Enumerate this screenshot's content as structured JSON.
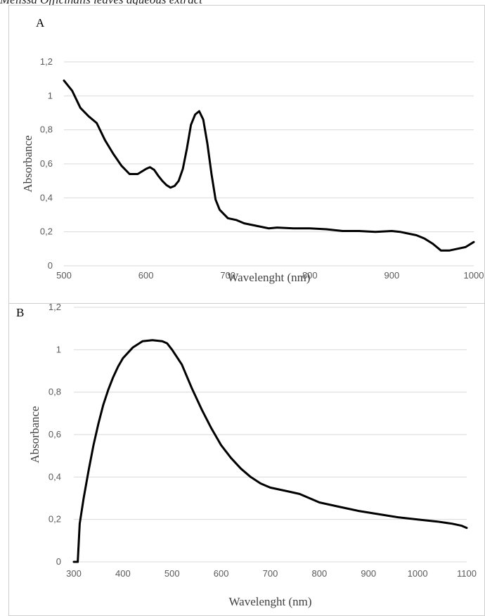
{
  "page_caption": "Melissa Officinalis leaves aqueous extract",
  "chart_data": [
    {
      "id": "A",
      "panel_label": "A",
      "type": "line",
      "xlabel": "Wavelenght (nm)",
      "ylabel": "Absorbance",
      "xlim": [
        500,
        1000
      ],
      "ylim": [
        0,
        1.2
      ],
      "xticks": [
        500,
        600,
        700,
        800,
        900,
        1000
      ],
      "xtick_labels": [
        "500",
        "600",
        "700",
        "800",
        "900",
        "1000"
      ],
      "yticks": [
        0,
        0.2,
        0.4,
        0.6,
        0.8,
        1,
        1.2
      ],
      "ytick_labels": [
        "0",
        "0,2",
        "0,4",
        "0,6",
        "0,8",
        "1",
        "1,2"
      ],
      "grid": true,
      "series": [
        {
          "x": [
            500,
            510,
            520,
            530,
            540,
            550,
            560,
            570,
            580,
            590,
            600,
            605,
            610,
            615,
            620,
            625,
            630,
            635,
            640,
            645,
            650,
            655,
            660,
            665,
            670,
            675,
            680,
            685,
            690,
            700,
            710,
            720,
            730,
            740,
            750,
            760,
            780,
            800,
            820,
            840,
            860,
            880,
            900,
            910,
            920,
            930,
            940,
            950,
            960,
            970,
            980,
            990,
            1000
          ],
          "y": [
            1.09,
            1.03,
            0.93,
            0.88,
            0.84,
            0.74,
            0.66,
            0.59,
            0.54,
            0.54,
            0.57,
            0.58,
            0.565,
            0.53,
            0.5,
            0.475,
            0.46,
            0.47,
            0.5,
            0.57,
            0.69,
            0.83,
            0.89,
            0.91,
            0.86,
            0.72,
            0.54,
            0.39,
            0.33,
            0.28,
            0.27,
            0.25,
            0.24,
            0.23,
            0.22,
            0.225,
            0.22,
            0.22,
            0.215,
            0.205,
            0.205,
            0.2,
            0.205,
            0.2,
            0.19,
            0.18,
            0.16,
            0.13,
            0.09,
            0.09,
            0.1,
            0.11,
            0.14
          ]
        }
      ]
    },
    {
      "id": "B",
      "panel_label": "B",
      "type": "line",
      "xlabel": "Wavelenght (nm)",
      "ylabel": "Absorbance",
      "xlim": [
        300,
        1100
      ],
      "ylim": [
        0,
        1.2
      ],
      "xticks": [
        300,
        400,
        500,
        600,
        700,
        800,
        900,
        1000,
        1100
      ],
      "xtick_labels": [
        "300",
        "400",
        "500",
        "600",
        "700",
        "800",
        "900",
        "1000",
        "1100"
      ],
      "yticks": [
        0,
        0.2,
        0.4,
        0.6,
        0.8,
        1,
        1.2
      ],
      "ytick_labels": [
        "0",
        "0,2",
        "0,4",
        "0,6",
        "0,8",
        "1",
        "1,2"
      ],
      "grid": true,
      "series": [
        {
          "x": [
            300,
            308,
            312,
            320,
            330,
            340,
            350,
            360,
            370,
            380,
            390,
            400,
            420,
            440,
            460,
            480,
            490,
            500,
            520,
            540,
            560,
            580,
            600,
            620,
            640,
            660,
            680,
            700,
            720,
            740,
            760,
            780,
            800,
            840,
            880,
            920,
            960,
            1000,
            1040,
            1070,
            1090,
            1100
          ],
          "y": [
            0,
            0,
            0.18,
            0.3,
            0.43,
            0.55,
            0.65,
            0.74,
            0.81,
            0.87,
            0.92,
            0.96,
            1.01,
            1.04,
            1.045,
            1.04,
            1.03,
            1.0,
            0.93,
            0.82,
            0.72,
            0.63,
            0.55,
            0.49,
            0.44,
            0.4,
            0.37,
            0.35,
            0.34,
            0.33,
            0.32,
            0.3,
            0.28,
            0.26,
            0.24,
            0.225,
            0.21,
            0.2,
            0.19,
            0.18,
            0.17,
            0.16
          ]
        }
      ]
    }
  ]
}
